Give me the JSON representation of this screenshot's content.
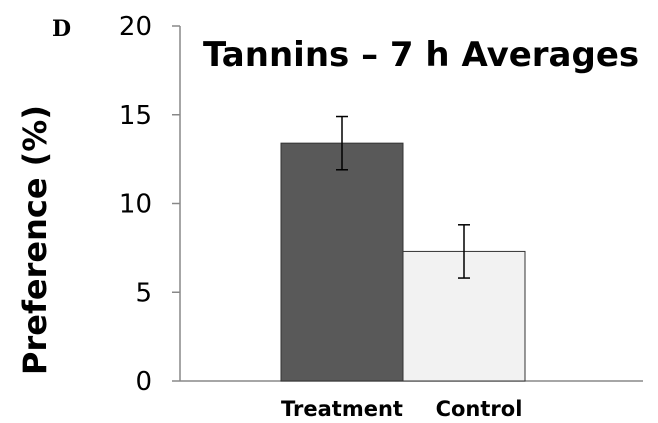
{
  "panel_label": "D",
  "chart_data": {
    "type": "bar",
    "title": "Tannins – 7 h Averages",
    "xlabel": "",
    "ylabel": "Preference (%)",
    "ylim": [
      0,
      20
    ],
    "yticks": [
      0,
      5,
      10,
      15,
      20
    ],
    "ytick_labels": [
      "0",
      "5",
      "10",
      "15",
      "20"
    ],
    "categories": [
      "Treatment",
      "Control"
    ],
    "values": [
      13.4,
      7.3
    ],
    "error": [
      1.5,
      1.5
    ],
    "colors": [
      "#595959",
      "#f2f2f2"
    ],
    "grid": false,
    "legend": "none"
  }
}
